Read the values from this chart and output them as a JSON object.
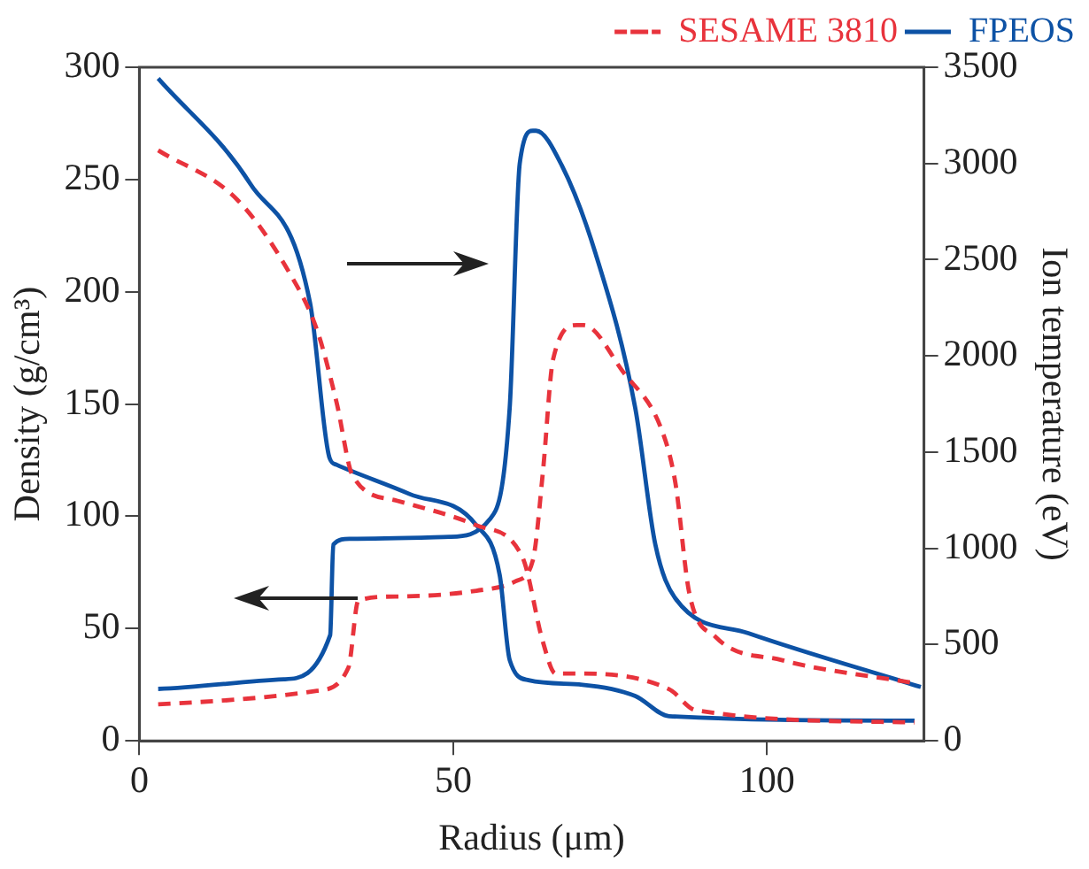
{
  "chart_data": {
    "type": "line",
    "xlabel": "Radius (μm)",
    "ylabel": "Density (g/cm³)",
    "y2label": "Ion temperature (eV)",
    "xlim": [
      0,
      125
    ],
    "xticks": [
      0,
      50,
      100
    ],
    "ylim": [
      0,
      300
    ],
    "yticks": [
      0,
      50,
      100,
      150,
      200,
      250,
      300
    ],
    "y2lim": [
      0,
      3500
    ],
    "y2ticks": [
      0,
      500,
      1000,
      1500,
      2000,
      2500,
      3000,
      3500
    ],
    "grid": false,
    "legend": "top right",
    "marker": "none",
    "series": [
      {
        "name": "SESAME 3810",
        "color": "#e8333c",
        "line_style": "dashed",
        "x": [
          3,
          15.6,
          24,
          28.3,
          31.4,
          34,
          41,
          53.7,
          61,
          64.3,
          66.3,
          68.4,
          84.4,
          88.6,
          123.5
        ],
        "values": [
          263,
          241,
          208,
          183,
          151,
          118,
          107,
          96,
          82,
          44,
          30,
          30,
          23,
          13.7,
          8.2
        ]
      },
      {
        "name": "FPEOS",
        "color": "#0d52a5",
        "line_style": "solid",
        "x": [
          3,
          17.7,
          27.2,
          30.3,
          31.4,
          43,
          53.7,
          57.4,
          59,
          62,
          70.6,
          79,
          84.4,
          123.5
        ],
        "values": [
          295,
          248,
          195,
          126,
          123,
          110,
          96,
          74,
          36,
          27,
          25,
          20,
          11,
          9
        ]
      },
      {
        "color": "#e8333c",
        "line_style": "dashed",
        "axis": "y2",
        "x": [
          3,
          28.3,
          33.3,
          34.9,
          41,
          53.7,
          60,
          62.7,
          64.3,
          65.9,
          69.7,
          70.8,
          77,
          83.4,
          85.4,
          87.6,
          91.8,
          102.3,
          123.5
        ],
        "values": [
          190,
          260,
          380,
          730,
          750,
          780,
          830,
          940,
          1400,
          1980,
          2160,
          2160,
          1920,
          1600,
          1340,
          770,
          540,
          420,
          300
        ]
      },
      {
        "color": "#0d52a5",
        "line_style": "solid",
        "axis": "y2",
        "x": [
          3,
          23,
          30.4,
          30.9,
          33.5,
          49.4,
          55.8,
          59,
          60.6,
          62.7,
          63.2,
          67.3,
          72.7,
          79,
          82.2,
          85.4,
          97,
          124.5
        ],
        "values": [
          270,
          320,
          550,
          1020,
          1050,
          1060,
          1150,
          1730,
          3000,
          3170,
          3170,
          2990,
          2530,
          1730,
          1020,
          740,
          560,
          280
        ]
      }
    ]
  }
}
